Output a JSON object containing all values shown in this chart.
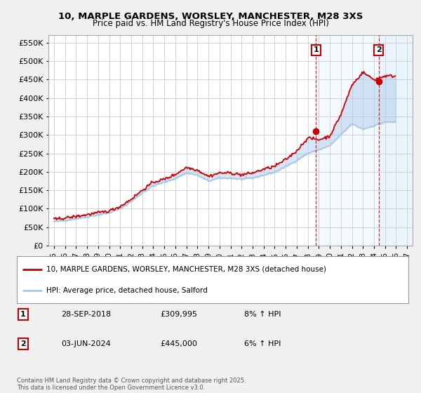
{
  "title1": "10, MARPLE GARDENS, WORSLEY, MANCHESTER, M28 3XS",
  "title2": "Price paid vs. HM Land Registry's House Price Index (HPI)",
  "xlim": [
    1994.5,
    2027.5
  ],
  "ylim": [
    0,
    570000
  ],
  "yticks": [
    0,
    50000,
    100000,
    150000,
    200000,
    250000,
    300000,
    350000,
    400000,
    450000,
    500000,
    550000
  ],
  "xticks": [
    1995,
    1996,
    1997,
    1998,
    1999,
    2000,
    2001,
    2002,
    2003,
    2004,
    2005,
    2006,
    2007,
    2008,
    2009,
    2010,
    2011,
    2012,
    2013,
    2014,
    2015,
    2016,
    2017,
    2018,
    2019,
    2020,
    2021,
    2022,
    2023,
    2024,
    2025,
    2026,
    2027
  ],
  "marker1_x": 2018.75,
  "marker1_y": 309995,
  "marker2_x": 2024.42,
  "marker2_y": 445000,
  "vline1_x": 2018.75,
  "vline2_x": 2024.42,
  "legend_label_red": "10, MARPLE GARDENS, WORSLEY, MANCHESTER, M28 3XS (detached house)",
  "legend_label_blue": "HPI: Average price, detached house, Salford",
  "table_entries": [
    {
      "num": "1",
      "date": "28-SEP-2018",
      "price": "£309,995",
      "hpi": "8% ↑ HPI"
    },
    {
      "num": "2",
      "date": "03-JUN-2024",
      "price": "£445,000",
      "hpi": "6% ↑ HPI"
    }
  ],
  "footnote": "Contains HM Land Registry data © Crown copyright and database right 2025.\nThis data is licensed under the Open Government Licence v3.0.",
  "bg_color": "#f0f0f0",
  "plot_bg_color": "#ffffff",
  "red_color": "#cc0000",
  "blue_color": "#a8c8e8",
  "grid_color": "#cccccc",
  "shaded_color": "#ddeeff",
  "hpi_yearly": {
    "1995": 65000,
    "1996": 68000,
    "1997": 73000,
    "1998": 78000,
    "1999": 83000,
    "2000": 89000,
    "2001": 100000,
    "2002": 119000,
    "2003": 143000,
    "2004": 162000,
    "2005": 172000,
    "2006": 182000,
    "2007": 197000,
    "2008": 191000,
    "2009": 175000,
    "2010": 183000,
    "2011": 183000,
    "2012": 180000,
    "2013": 183000,
    "2014": 191000,
    "2015": 199000,
    "2016": 214000,
    "2017": 231000,
    "2018": 250000,
    "2019": 260000,
    "2020": 271000,
    "2021": 300000,
    "2022": 330000,
    "2023": 316000,
    "2024": 325000,
    "2025": 335000,
    "2026": 335000
  },
  "pp_yearly": {
    "1995": 71000,
    "1996": 75000,
    "1997": 79000,
    "1998": 84000,
    "1999": 89000,
    "2000": 94000,
    "2001": 106000,
    "2002": 126000,
    "2003": 150000,
    "2004": 172000,
    "2005": 180000,
    "2006": 193000,
    "2007": 212000,
    "2008": 205000,
    "2009": 188000,
    "2010": 197000,
    "2011": 197000,
    "2012": 192000,
    "2013": 197000,
    "2014": 207000,
    "2015": 215000,
    "2016": 233000,
    "2017": 257000,
    "2018": 292000,
    "2019": 287000,
    "2020": 297000,
    "2021": 355000,
    "2022": 435000,
    "2023": 470000,
    "2024": 450000,
    "2025": 460000,
    "2026": 460000
  }
}
